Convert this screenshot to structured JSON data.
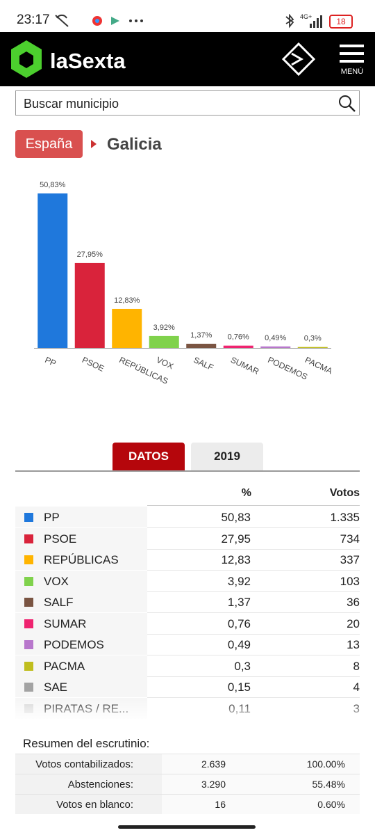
{
  "status_bar": {
    "time": "23:17",
    "network": "4G+",
    "battery": "18"
  },
  "header": {
    "brand": "laSexta",
    "menu": "MENÚ"
  },
  "search": {
    "placeholder": "Buscar municipio"
  },
  "breadcrumb": {
    "parent": "España",
    "current": "Galicia"
  },
  "chart_data": {
    "type": "bar",
    "categories": [
      "PP",
      "PSOE",
      "REPÚBLICAS",
      "VOX",
      "SALF",
      "SUMAR",
      "PODEMOS",
      "PACMA"
    ],
    "values": [
      50.83,
      27.95,
      12.83,
      3.92,
      1.37,
      0.76,
      0.49,
      0.3
    ],
    "value_labels": [
      "50,83%",
      "27,95%",
      "12,83%",
      "3,92%",
      "1,37%",
      "0,76%",
      "0,49%",
      "0,3%"
    ],
    "colors": [
      "#1f78dc",
      "#d9233b",
      "#ffb400",
      "#80d24c",
      "#7a5442",
      "#ef2470",
      "#b877cc",
      "#c0be1e"
    ]
  },
  "tabs": [
    "DATOS",
    "2019"
  ],
  "table": {
    "header": [
      "%",
      "Votos"
    ],
    "rows": [
      {
        "name": "PP",
        "color": "#1f78dc",
        "pct": "50,83",
        "votes": "1.335"
      },
      {
        "name": "PSOE",
        "color": "#d9233b",
        "pct": "27,95",
        "votes": "734"
      },
      {
        "name": "REPÚBLICAS",
        "color": "#ffb400",
        "pct": "12,83",
        "votes": "337"
      },
      {
        "name": "VOX",
        "color": "#80d24c",
        "pct": "3,92",
        "votes": "103"
      },
      {
        "name": "SALF",
        "color": "#7a5442",
        "pct": "1,37",
        "votes": "36"
      },
      {
        "name": "SUMAR",
        "color": "#ef2470",
        "pct": "0,76",
        "votes": "20"
      },
      {
        "name": "PODEMOS",
        "color": "#b877cc",
        "pct": "0,49",
        "votes": "13"
      },
      {
        "name": "PACMA",
        "color": "#c0be1e",
        "pct": "0,3",
        "votes": "8"
      },
      {
        "name": "SAE",
        "color": "#a3a3a3",
        "pct": "0,15",
        "votes": "4"
      },
      {
        "name": "PIRATAS / RE...",
        "color": "#d8d8d8",
        "pct": "0,11",
        "votes": "3"
      }
    ]
  },
  "summary": {
    "title": "Resumen del escrutinio:",
    "rows": [
      [
        "Votos contabilizados:",
        "2.639",
        "100.00%"
      ],
      [
        "Abstenciones:",
        "3.290",
        "55.48%"
      ],
      [
        "Votos en blanco:",
        "16",
        "0.60%"
      ]
    ]
  }
}
